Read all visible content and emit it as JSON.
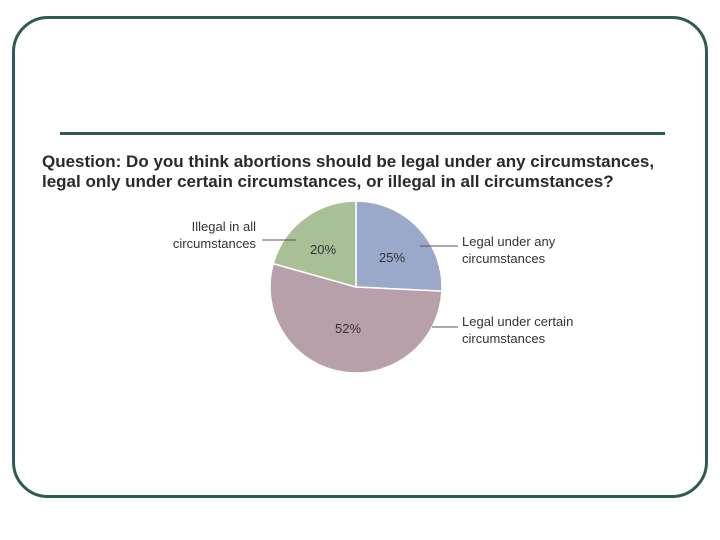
{
  "question": "Question: Do you think abortions should be legal under any circumstances, legal only under certain circumstances, or illegal in all circumstances?",
  "chart_data": {
    "type": "pie",
    "title": "Question: Do you think abortions should be legal under any circumstances, legal only under certain circumstances, or illegal in all circumstances?",
    "slices": [
      {
        "label_lines": [
          "Legal under any",
          "circumstances"
        ],
        "value": 25,
        "value_label": "25%",
        "color": "#9aa9c9"
      },
      {
        "label_lines": [
          "Legal under certain",
          "circumstances"
        ],
        "value": 52,
        "value_label": "52%",
        "color": "#b8a0ab"
      },
      {
        "label_lines": [
          "Illegal in all",
          "circumstances"
        ],
        "value": 20,
        "value_label": "20%",
        "color": "#a9bf95"
      }
    ]
  }
}
